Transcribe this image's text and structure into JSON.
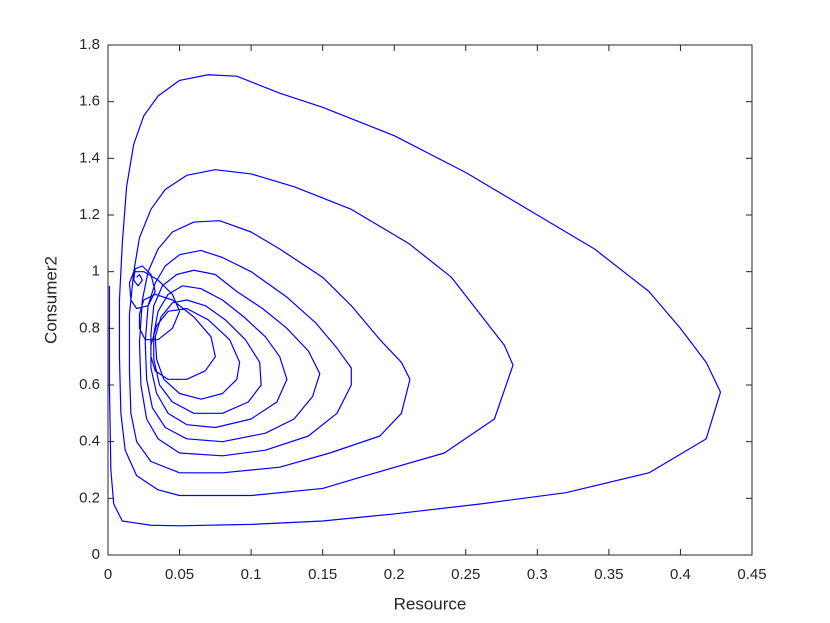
{
  "chart_data": {
    "type": "line",
    "xlabel": "Resource",
    "ylabel": "Consumer2",
    "xlim": [
      0,
      0.45
    ],
    "ylim": [
      0,
      1.8
    ],
    "xticks": [
      0,
      0.05,
      0.1,
      0.15,
      0.2,
      0.25,
      0.3,
      0.35,
      0.4,
      0.45
    ],
    "yticks": [
      0,
      0.2,
      0.4,
      0.6,
      0.8,
      1,
      1.2,
      1.4,
      1.6,
      1.8
    ],
    "x": [
      0.001,
      0.001,
      0.002,
      0.004,
      0.01,
      0.03,
      0.05,
      0.1,
      0.15,
      0.2,
      0.26,
      0.32,
      0.378,
      0.418,
      0.428,
      0.418,
      0.4,
      0.378,
      0.34,
      0.3,
      0.25,
      0.2,
      0.15,
      0.12,
      0.09,
      0.07,
      0.05,
      0.035,
      0.025,
      0.018,
      0.013,
      0.01,
      0.008,
      0.008,
      0.009,
      0.012,
      0.02,
      0.035,
      0.05,
      0.1,
      0.15,
      0.18,
      0.235,
      0.27,
      0.283,
      0.277,
      0.26,
      0.24,
      0.21,
      0.17,
      0.13,
      0.1,
      0.075,
      0.055,
      0.04,
      0.03,
      0.022,
      0.018,
      0.015,
      0.015,
      0.016,
      0.02,
      0.03,
      0.05,
      0.08,
      0.12,
      0.155,
      0.19,
      0.205,
      0.211,
      0.205,
      0.19,
      0.17,
      0.15,
      0.12,
      0.1,
      0.078,
      0.06,
      0.045,
      0.035,
      0.028,
      0.024,
      0.022,
      0.023,
      0.027,
      0.035,
      0.05,
      0.08,
      0.11,
      0.14,
      0.16,
      0.17,
      0.17,
      0.16,
      0.145,
      0.125,
      0.1,
      0.08,
      0.065,
      0.05,
      0.04,
      0.033,
      0.028,
      0.026,
      0.027,
      0.031,
      0.04,
      0.055,
      0.08,
      0.11,
      0.13,
      0.143,
      0.148,
      0.14,
      0.125,
      0.108,
      0.09,
      0.075,
      0.06,
      0.048,
      0.038,
      0.032,
      0.03,
      0.03,
      0.034,
      0.042,
      0.055,
      0.075,
      0.1,
      0.118,
      0.125,
      0.12,
      0.11,
      0.095,
      0.08,
      0.065,
      0.052,
      0.042,
      0.035,
      0.032,
      0.032,
      0.036,
      0.045,
      0.06,
      0.08,
      0.098,
      0.107,
      0.106,
      0.096,
      0.082,
      0.068,
      0.055,
      0.045,
      0.037,
      0.033,
      0.034,
      0.039,
      0.05,
      0.065,
      0.08,
      0.09,
      0.092,
      0.085,
      0.07,
      0.055,
      0.042,
      0.034,
      0.03,
      0.03,
      0.033,
      0.042,
      0.055,
      0.068,
      0.075,
      0.072,
      0.06,
      0.045,
      0.033,
      0.025,
      0.022,
      0.022,
      0.026,
      0.035,
      0.045,
      0.05,
      0.045,
      0.035,
      0.025,
      0.018,
      0.015,
      0.016,
      0.02,
      0.028,
      0.033,
      0.03,
      0.024,
      0.019,
      0.018,
      0.021,
      0.024,
      0.022,
      0.02
    ],
    "series": [
      {
        "color": "#0000ff",
        "values": [
          0.95,
          0.6,
          0.3,
          0.18,
          0.12,
          0.105,
          0.103,
          0.108,
          0.12,
          0.145,
          0.18,
          0.22,
          0.29,
          0.41,
          0.575,
          0.68,
          0.8,
          0.93,
          1.08,
          1.2,
          1.35,
          1.48,
          1.58,
          1.63,
          1.69,
          1.695,
          1.675,
          1.62,
          1.55,
          1.45,
          1.3,
          1.1,
          0.9,
          0.7,
          0.5,
          0.37,
          0.28,
          0.23,
          0.21,
          0.21,
          0.235,
          0.28,
          0.36,
          0.48,
          0.67,
          0.74,
          0.85,
          0.98,
          1.1,
          1.22,
          1.3,
          1.345,
          1.36,
          1.34,
          1.29,
          1.22,
          1.12,
          1.0,
          0.85,
          0.65,
          0.5,
          0.4,
          0.33,
          0.29,
          0.29,
          0.31,
          0.36,
          0.42,
          0.5,
          0.62,
          0.68,
          0.76,
          0.88,
          0.98,
          1.08,
          1.14,
          1.18,
          1.175,
          1.14,
          1.08,
          1.0,
          0.9,
          0.75,
          0.6,
          0.48,
          0.41,
          0.36,
          0.35,
          0.37,
          0.42,
          0.5,
          0.6,
          0.66,
          0.73,
          0.82,
          0.91,
          1.0,
          1.05,
          1.075,
          1.06,
          1.02,
          0.96,
          0.88,
          0.75,
          0.62,
          0.52,
          0.45,
          0.41,
          0.4,
          0.43,
          0.48,
          0.56,
          0.64,
          0.72,
          0.8,
          0.87,
          0.93,
          0.99,
          1.005,
          0.99,
          0.95,
          0.88,
          0.78,
          0.66,
          0.57,
          0.5,
          0.46,
          0.45,
          0.48,
          0.54,
          0.62,
          0.7,
          0.77,
          0.84,
          0.9,
          0.94,
          0.95,
          0.92,
          0.86,
          0.78,
          0.69,
          0.6,
          0.54,
          0.5,
          0.5,
          0.54,
          0.6,
          0.68,
          0.76,
          0.83,
          0.88,
          0.9,
          0.89,
          0.84,
          0.77,
          0.69,
          0.62,
          0.57,
          0.55,
          0.57,
          0.62,
          0.68,
          0.76,
          0.83,
          0.87,
          0.86,
          0.81,
          0.74,
          0.7,
          0.65,
          0.62,
          0.62,
          0.65,
          0.7,
          0.77,
          0.84,
          0.9,
          0.92,
          0.9,
          0.85,
          0.8,
          0.76,
          0.76,
          0.8,
          0.86,
          0.92,
          0.97,
          1.0,
          1.0,
          0.96,
          0.9,
          0.87,
          0.88,
          0.93,
          0.99,
          1.02,
          1.01,
          0.97,
          0.95,
          0.97,
          0.99,
          0.98
        ]
      }
    ]
  }
}
